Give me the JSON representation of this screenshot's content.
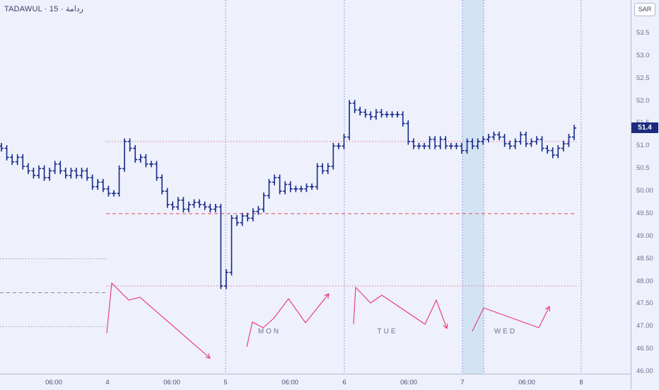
{
  "header": {
    "symbol_title": "TADAWUL · 15 · ﺭﺩﺍﻣﺔ"
  },
  "price_axis": {
    "currency": "SAR",
    "ticks": [
      "53.5",
      "53.0",
      "52.5",
      "52.0",
      "51.5",
      "51.0",
      "50.5",
      "50.00",
      "49.50",
      "49.00",
      "48.50",
      "48.00",
      "47.50",
      "47.00",
      "46.50",
      "46.00"
    ],
    "last_price_label": "51.4"
  },
  "time_axis": {
    "labels": [
      "06:00",
      "4",
      "06:00",
      "5",
      "06:00",
      "6",
      "06:00",
      "7",
      "06:00",
      "8"
    ]
  },
  "colors": {
    "bars": "#14288a",
    "zigzag": "#e8356e",
    "level_dotted": "#e06070",
    "level_dashed": "#e04a5a",
    "session_divider": "#5a6fd0",
    "highlight": "#d2e4f4",
    "background": "#eef0fb"
  },
  "chart_data": {
    "type": "ohlc",
    "ylim": [
      46.0,
      53.8
    ],
    "scale": "linear",
    "grid": false,
    "x_ticks": [
      "06:00",
      "4",
      "06:00",
      "5",
      "06:00",
      "6",
      "06:00",
      "7",
      "06:00",
      "8"
    ],
    "day_labels": [
      "MON",
      "TUE",
      "WED"
    ],
    "closes": [
      50.95,
      50.75,
      50.65,
      50.75,
      50.55,
      50.45,
      50.35,
      50.5,
      50.3,
      50.45,
      50.6,
      50.45,
      50.35,
      50.45,
      50.35,
      50.45,
      50.3,
      50.1,
      50.2,
      50.05,
      49.95,
      49.95,
      50.5,
      51.1,
      50.95,
      50.7,
      50.75,
      50.6,
      50.6,
      50.3,
      50.0,
      49.7,
      49.65,
      49.8,
      49.6,
      49.7,
      49.75,
      49.7,
      49.65,
      49.6,
      49.65,
      47.9,
      48.2,
      49.4,
      49.3,
      49.45,
      49.4,
      49.55,
      49.6,
      49.9,
      50.2,
      50.3,
      50.0,
      50.15,
      50.05,
      50.05,
      50.05,
      50.1,
      50.1,
      50.55,
      50.45,
      50.55,
      51.0,
      51.0,
      51.2,
      51.95,
      51.8,
      51.75,
      51.7,
      51.65,
      51.75,
      51.7,
      51.7,
      51.7,
      51.7,
      51.5,
      51.1,
      51.0,
      51.0,
      51.0,
      51.15,
      51.0,
      51.15,
      51.0,
      51.0,
      51.0,
      50.9,
      51.1,
      51.0,
      51.1,
      51.15,
      51.2,
      51.25,
      51.2,
      51.05,
      51.0,
      51.1,
      51.25,
      51.05,
      51.1,
      51.15,
      50.95,
      50.9,
      50.8,
      50.95,
      51.05,
      51.2,
      51.4
    ],
    "levels": [
      {
        "style": "dotted",
        "price": 51.1
      },
      {
        "style": "dashed",
        "price": 49.5
      },
      {
        "style": "dotted",
        "price": 47.9
      },
      {
        "style": "dotted",
        "price": 48.5
      },
      {
        "style": "dashed",
        "price": 47.75
      },
      {
        "style": "dotted",
        "price": 47.0
      }
    ],
    "zigzags": [
      {
        "points": [
          [
            151,
            471
          ],
          [
            158,
            400
          ],
          [
            182,
            424
          ],
          [
            198,
            420
          ],
          [
            297,
            506
          ]
        ]
      },
      {
        "points": [
          [
            349,
            490
          ],
          [
            357,
            455
          ],
          [
            372,
            463
          ],
          [
            387,
            450
          ],
          [
            408,
            422
          ],
          [
            432,
            456
          ],
          [
            465,
            415
          ]
        ]
      },
      {
        "points": [
          [
            500,
            458
          ],
          [
            503,
            406
          ],
          [
            524,
            428
          ],
          [
            540,
            417
          ],
          [
            601,
            458
          ],
          [
            617,
            424
          ],
          [
            632,
            464
          ]
        ]
      },
      {
        "points": [
          [
            668,
            468
          ],
          [
            684,
            435
          ],
          [
            762,
            463
          ],
          [
            777,
            433
          ]
        ]
      }
    ]
  }
}
